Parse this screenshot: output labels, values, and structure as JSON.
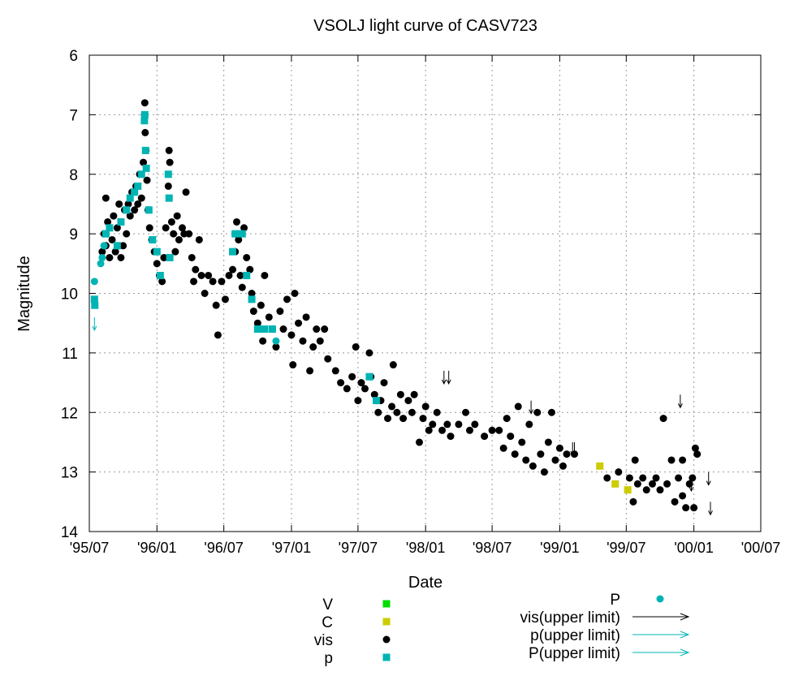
{
  "chart_data": {
    "type": "scatter",
    "title": "VSOLJ light curve of CASV723",
    "xlabel": "Date",
    "ylabel": "Magnitude",
    "xlim": [
      "1995-07-01",
      "2000-07-01"
    ],
    "ylim": [
      14,
      6
    ],
    "y_inverted": true,
    "grid": true,
    "legend_placement": "bottom",
    "x_ticks": [
      {
        "date": "1995-07-01",
        "label": "'95/07"
      },
      {
        "date": "1996-01-01",
        "label": "'96/01"
      },
      {
        "date": "1996-07-01",
        "label": "'96/07"
      },
      {
        "date": "1997-01-01",
        "label": "'97/01"
      },
      {
        "date": "1997-07-01",
        "label": "'97/07"
      },
      {
        "date": "1998-01-01",
        "label": "'98/01"
      },
      {
        "date": "1998-07-01",
        "label": "'98/07"
      },
      {
        "date": "1999-01-01",
        "label": "'99/01"
      },
      {
        "date": "1999-07-01",
        "label": "'99/07"
      },
      {
        "date": "2000-01-01",
        "label": "'00/01"
      },
      {
        "date": "2000-07-01",
        "label": "'00/07"
      }
    ],
    "y_ticks": [
      6,
      7,
      8,
      9,
      10,
      11,
      12,
      13,
      14
    ],
    "series": [
      {
        "name": "V",
        "marker": "square",
        "color": "#00dd00",
        "points": []
      },
      {
        "name": "C",
        "marker": "square",
        "color": "#cccc00",
        "points": [
          [
            "1999-04-20",
            12.9
          ],
          [
            "1999-06-01",
            13.2
          ],
          [
            "1999-07-05",
            13.3
          ]
        ]
      },
      {
        "name": "vis",
        "marker": "circle",
        "color": "#000000",
        "points": [
          [
            "1995-08-05",
            9.3
          ],
          [
            "1995-08-10",
            9.0
          ],
          [
            "1995-08-15",
            8.4
          ],
          [
            "1995-08-15",
            9.2
          ],
          [
            "1995-08-20",
            8.8
          ],
          [
            "1995-08-25",
            9.4
          ],
          [
            "1995-09-01",
            9.1
          ],
          [
            "1995-09-05",
            8.7
          ],
          [
            "1995-09-10",
            9.3
          ],
          [
            "1995-09-15",
            8.9
          ],
          [
            "1995-09-20",
            8.5
          ],
          [
            "1995-09-25",
            9.4
          ],
          [
            "1995-10-01",
            9.2
          ],
          [
            "1995-10-05",
            8.6
          ],
          [
            "1995-10-10",
            9.0
          ],
          [
            "1995-10-15",
            8.5
          ],
          [
            "1995-10-20",
            8.7
          ],
          [
            "1995-10-25",
            8.3
          ],
          [
            "1995-11-01",
            8.6
          ],
          [
            "1995-11-05",
            8.2
          ],
          [
            "1995-11-10",
            8.5
          ],
          [
            "1995-11-15",
            8.0
          ],
          [
            "1995-11-20",
            8.4
          ],
          [
            "1995-11-25",
            7.8
          ],
          [
            "1995-11-28",
            7.0
          ],
          [
            "1995-11-29",
            6.8
          ],
          [
            "1995-11-30",
            7.3
          ],
          [
            "1995-12-02",
            7.6
          ],
          [
            "1995-12-05",
            8.1
          ],
          [
            "1995-12-08",
            8.6
          ],
          [
            "1995-12-12",
            8.9
          ],
          [
            "1995-12-18",
            9.1
          ],
          [
            "1995-12-25",
            9.3
          ],
          [
            "1996-01-01",
            9.5
          ],
          [
            "1996-01-08",
            9.7
          ],
          [
            "1996-01-15",
            9.8
          ],
          [
            "1996-01-20",
            9.4
          ],
          [
            "1996-01-25",
            8.9
          ],
          [
            "1996-02-01",
            8.2
          ],
          [
            "1996-02-03",
            7.6
          ],
          [
            "1996-02-05",
            7.8
          ],
          [
            "1996-02-10",
            8.8
          ],
          [
            "1996-02-15",
            9.0
          ],
          [
            "1996-02-20",
            9.3
          ],
          [
            "1996-02-25",
            8.7
          ],
          [
            "1996-03-01",
            9.1
          ],
          [
            "1996-03-10",
            8.9
          ],
          [
            "1996-03-15",
            9.0
          ],
          [
            "1996-03-20",
            8.3
          ],
          [
            "1996-03-28",
            9.0
          ],
          [
            "1996-04-05",
            9.4
          ],
          [
            "1996-04-10",
            9.8
          ],
          [
            "1996-04-15",
            9.6
          ],
          [
            "1996-04-25",
            9.1
          ],
          [
            "1996-05-01",
            9.7
          ],
          [
            "1996-05-10",
            10.0
          ],
          [
            "1996-05-20",
            9.7
          ],
          [
            "1996-06-01",
            9.8
          ],
          [
            "1996-06-10",
            10.2
          ],
          [
            "1996-06-15",
            10.7
          ],
          [
            "1996-06-25",
            9.8
          ],
          [
            "1996-07-05",
            10.1
          ],
          [
            "1996-07-15",
            9.7
          ],
          [
            "1996-07-25",
            9.6
          ],
          [
            "1996-08-01",
            9.3
          ],
          [
            "1996-08-05",
            8.8
          ],
          [
            "1996-08-10",
            9.1
          ],
          [
            "1996-08-15",
            9.7
          ],
          [
            "1996-08-20",
            9.9
          ],
          [
            "1996-08-25",
            8.9
          ],
          [
            "1996-09-01",
            9.4
          ],
          [
            "1996-09-10",
            9.6
          ],
          [
            "1996-09-15",
            10.0
          ],
          [
            "1996-09-20",
            10.3
          ],
          [
            "1996-10-01",
            10.5
          ],
          [
            "1996-10-10",
            10.2
          ],
          [
            "1996-10-15",
            10.8
          ],
          [
            "1996-10-20",
            9.7
          ],
          [
            "1996-11-01",
            10.4
          ],
          [
            "1996-11-10",
            10.6
          ],
          [
            "1996-11-20",
            10.9
          ],
          [
            "1996-12-01",
            10.3
          ],
          [
            "1996-12-10",
            10.6
          ],
          [
            "1996-12-20",
            10.1
          ],
          [
            "1997-01-01",
            10.7
          ],
          [
            "1997-01-05",
            11.2
          ],
          [
            "1997-01-10",
            10.0
          ],
          [
            "1997-01-20",
            10.5
          ],
          [
            "1997-02-01",
            10.8
          ],
          [
            "1997-02-10",
            10.4
          ],
          [
            "1997-02-20",
            11.3
          ],
          [
            "1997-03-01",
            10.9
          ],
          [
            "1997-03-10",
            10.6
          ],
          [
            "1997-03-20",
            10.8
          ],
          [
            "1997-04-01",
            10.6
          ],
          [
            "1997-04-10",
            11.1
          ],
          [
            "1997-05-01",
            11.3
          ],
          [
            "1997-05-15",
            11.5
          ],
          [
            "1997-06-01",
            11.6
          ],
          [
            "1997-06-15",
            11.4
          ],
          [
            "1997-06-25",
            10.9
          ],
          [
            "1997-07-01",
            11.8
          ],
          [
            "1997-07-10",
            11.5
          ],
          [
            "1997-07-20",
            11.6
          ],
          [
            "1997-08-01",
            11.0
          ],
          [
            "1997-08-05",
            11.4
          ],
          [
            "1997-08-15",
            11.7
          ],
          [
            "1997-08-25",
            12.0
          ],
          [
            "1997-09-01",
            11.8
          ],
          [
            "1997-09-10",
            11.5
          ],
          [
            "1997-09-20",
            12.1
          ],
          [
            "1997-10-01",
            11.9
          ],
          [
            "1997-10-05",
            11.2
          ],
          [
            "1997-10-15",
            12.0
          ],
          [
            "1997-10-25",
            11.7
          ],
          [
            "1997-11-01",
            12.1
          ],
          [
            "1997-11-15",
            11.8
          ],
          [
            "1997-11-25",
            12.0
          ],
          [
            "1997-12-01",
            11.7
          ],
          [
            "1997-12-15",
            12.5
          ],
          [
            "1997-12-25",
            12.1
          ],
          [
            "1998-01-01",
            11.9
          ],
          [
            "1998-01-10",
            12.3
          ],
          [
            "1998-01-20",
            12.2
          ],
          [
            "1998-02-01",
            12.0
          ],
          [
            "1998-02-15",
            12.3
          ],
          [
            "1998-03-01",
            12.2
          ],
          [
            "1998-03-10",
            12.4
          ],
          [
            "1998-04-01",
            12.2
          ],
          [
            "1998-04-20",
            12.0
          ],
          [
            "1998-05-01",
            12.3
          ],
          [
            "1998-05-15",
            12.2
          ],
          [
            "1998-06-10",
            12.4
          ],
          [
            "1998-07-01",
            12.3
          ],
          [
            "1998-07-20",
            12.3
          ],
          [
            "1998-08-01",
            12.6
          ],
          [
            "1998-08-10",
            12.1
          ],
          [
            "1998-08-20",
            12.4
          ],
          [
            "1998-09-01",
            12.7
          ],
          [
            "1998-09-10",
            11.9
          ],
          [
            "1998-09-20",
            12.5
          ],
          [
            "1998-10-01",
            12.8
          ],
          [
            "1998-10-10",
            12.2
          ],
          [
            "1998-10-20",
            12.9
          ],
          [
            "1998-11-01",
            12.0
          ],
          [
            "1998-11-10",
            12.7
          ],
          [
            "1998-11-20",
            13.0
          ],
          [
            "1998-12-01",
            12.5
          ],
          [
            "1998-12-10",
            12.0
          ],
          [
            "1998-12-20",
            12.8
          ],
          [
            "1999-01-01",
            12.6
          ],
          [
            "1999-01-10",
            12.9
          ],
          [
            "1999-01-20",
            12.7
          ],
          [
            "1999-02-10",
            12.7
          ],
          [
            "1999-05-10",
            13.1
          ],
          [
            "1999-06-10",
            13.0
          ],
          [
            "1999-07-10",
            13.1
          ],
          [
            "1999-07-20",
            13.5
          ],
          [
            "1999-07-25",
            12.8
          ],
          [
            "1999-08-01",
            13.2
          ],
          [
            "1999-08-15",
            13.1
          ],
          [
            "1999-08-25",
            13.3
          ],
          [
            "1999-09-10",
            13.2
          ],
          [
            "1999-09-20",
            13.1
          ],
          [
            "1999-10-01",
            13.3
          ],
          [
            "1999-10-10",
            12.1
          ],
          [
            "1999-10-20",
            13.2
          ],
          [
            "1999-11-01",
            12.8
          ],
          [
            "1999-11-10",
            13.5
          ],
          [
            "1999-11-20",
            13.1
          ],
          [
            "1999-12-01",
            13.4
          ],
          [
            "1999-12-01",
            12.8
          ],
          [
            "1999-12-10",
            13.6
          ],
          [
            "1999-12-20",
            13.2
          ],
          [
            "1999-12-28",
            13.1
          ],
          [
            "2000-01-01",
            13.6
          ],
          [
            "2000-01-05",
            12.6
          ],
          [
            "2000-01-10",
            12.7
          ]
        ]
      },
      {
        "name": "p",
        "marker": "square",
        "color": "#00b4b4",
        "points": [
          [
            "1995-07-15",
            10.1
          ],
          [
            "1995-07-16",
            10.2
          ],
          [
            "1995-08-15",
            9.0
          ],
          [
            "1995-08-25",
            8.9
          ],
          [
            "1995-09-15",
            9.2
          ],
          [
            "1995-09-25",
            8.8
          ],
          [
            "1995-10-10",
            8.6
          ],
          [
            "1995-10-20",
            8.4
          ],
          [
            "1995-11-01",
            8.3
          ],
          [
            "1995-11-10",
            8.2
          ],
          [
            "1995-11-20",
            8.0
          ],
          [
            "1995-11-28",
            7.1
          ],
          [
            "1995-11-29",
            7.0
          ],
          [
            "1995-12-01",
            7.6
          ],
          [
            "1995-12-03",
            7.9
          ],
          [
            "1995-12-10",
            8.6
          ],
          [
            "1995-12-20",
            9.1
          ],
          [
            "1996-01-01",
            9.3
          ],
          [
            "1996-01-10",
            9.7
          ],
          [
            "1996-02-01",
            8.0
          ],
          [
            "1996-02-03",
            8.4
          ],
          [
            "1996-02-05",
            9.4
          ],
          [
            "1996-07-25",
            9.3
          ],
          [
            "1996-08-01",
            9.0
          ],
          [
            "1996-08-20",
            9.0
          ],
          [
            "1996-09-01",
            9.7
          ],
          [
            "1996-09-15",
            10.1
          ],
          [
            "1996-10-01",
            10.6
          ],
          [
            "1996-10-20",
            10.6
          ],
          [
            "1996-11-10",
            10.6
          ],
          [
            "1997-08-01",
            11.4
          ],
          [
            "1997-08-20",
            11.8
          ]
        ]
      },
      {
        "name": "P",
        "marker": "circle",
        "color": "#00b4b4",
        "points": [
          [
            "1995-07-15",
            9.8
          ],
          [
            "1995-08-01",
            9.5
          ],
          [
            "1995-08-05",
            9.4
          ],
          [
            "1995-08-10",
            9.2
          ],
          [
            "1996-11-20",
            10.8
          ]
        ]
      },
      {
        "name": "vis(upper limit)",
        "marker": "arrow",
        "color": "#000000",
        "points": [
          [
            "1998-02-20",
            11.3
          ],
          [
            "1998-03-05",
            11.3
          ],
          [
            "1998-10-15",
            11.8
          ],
          [
            "1999-02-05",
            12.5
          ],
          [
            "1999-02-10",
            12.5
          ],
          [
            "1999-11-25",
            11.7
          ],
          [
            "1999-12-25",
            13.1
          ],
          [
            "2000-02-10",
            13.0
          ],
          [
            "2000-02-15",
            13.5
          ]
        ]
      },
      {
        "name": "p(upper limit)",
        "marker": "arrow",
        "color": "#00b4b4",
        "points": []
      },
      {
        "name": "P(upper limit)",
        "marker": "arrow",
        "color": "#00b4b4",
        "points": [
          [
            "1995-07-15",
            10.4
          ]
        ]
      }
    ]
  }
}
